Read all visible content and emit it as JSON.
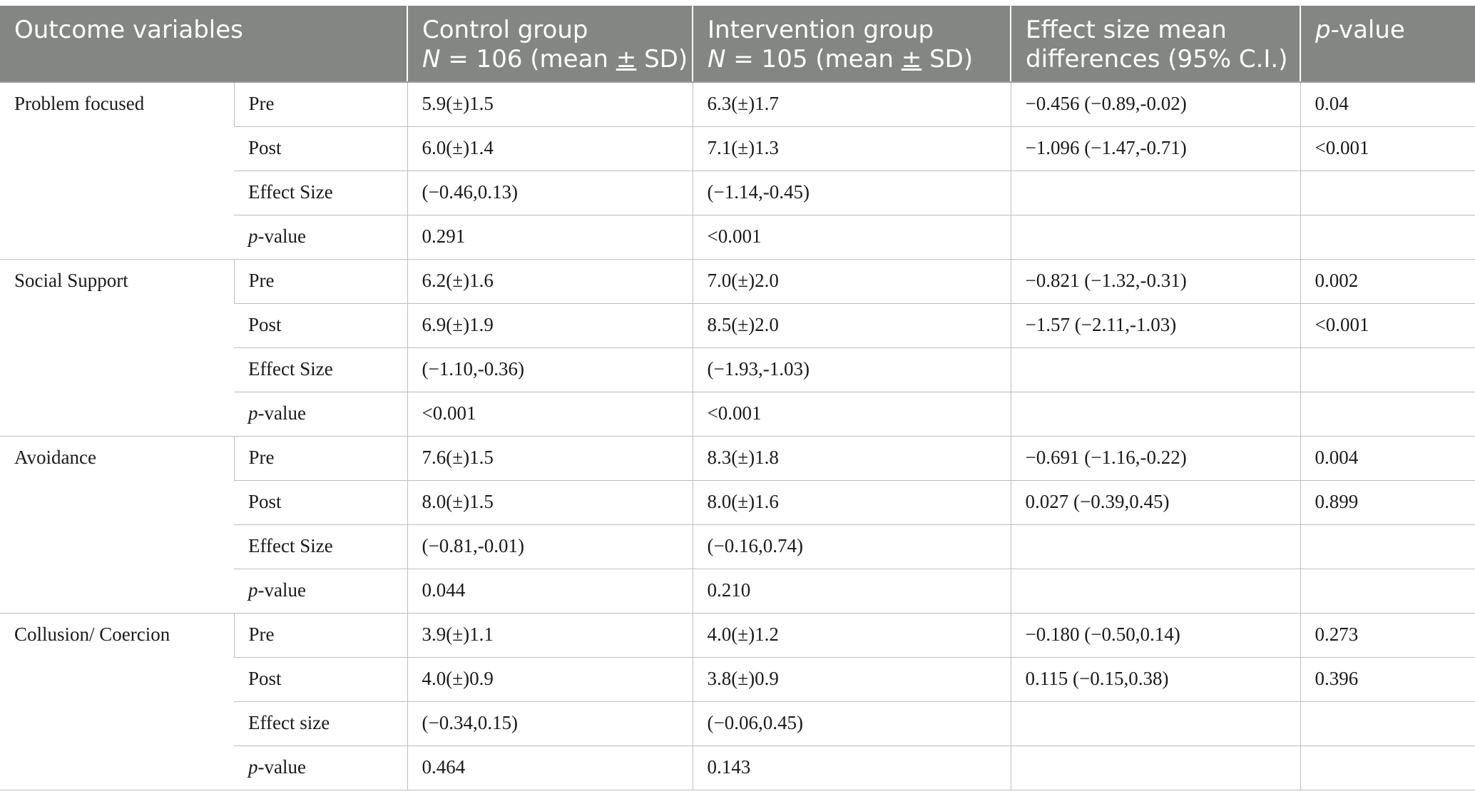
{
  "header": {
    "outcome_variables": "Outcome variables",
    "control_line1": "Control group",
    "control_n_symbol": "N",
    "control_n_rest": " = 106 (mean ",
    "control_pm": "±",
    "control_sd": " SD)",
    "intervention_line1": "Intervention group",
    "intervention_n_symbol": "N",
    "intervention_n_rest": " = 105 (mean ",
    "intervention_pm": "±",
    "intervention_sd": " SD)",
    "effect_line1": "Effect size mean",
    "effect_line2": "differences (95% C.I.)",
    "pvalue_p": "p",
    "pvalue_rest": "-value"
  },
  "groups": [
    {
      "name": "Problem focused",
      "rows": [
        {
          "measure": "Pre",
          "control": "5.9(±)1.5",
          "intervention": "6.3(±)1.7",
          "effect": "−0.456 (−0.89,-0.02)",
          "p": "0.04"
        },
        {
          "measure": "Post",
          "control": "6.0(±)1.4",
          "intervention": "7.1(±)1.3",
          "effect": "−1.096 (−1.47,-0.71)",
          "p": "<0.001"
        },
        {
          "measure": "Effect Size",
          "control": "(−0.46,0.13)",
          "intervention": "(−1.14,-0.45)",
          "effect": "",
          "p": ""
        },
        {
          "measure_p": "p",
          "measure_rest": "-value",
          "control": "0.291",
          "intervention": "<0.001",
          "effect": "",
          "p": ""
        }
      ]
    },
    {
      "name": "Social Support",
      "rows": [
        {
          "measure": "Pre",
          "control": "6.2(±)1.6",
          "intervention": "7.0(±)2.0",
          "effect": "−0.821 (−1.32,-0.31)",
          "p": "0.002"
        },
        {
          "measure": "Post",
          "control": "6.9(±)1.9",
          "intervention": "8.5(±)2.0",
          "effect": "−1.57 (−2.11,-1.03)",
          "p": "<0.001"
        },
        {
          "measure": "Effect Size",
          "control": "(−1.10,-0.36)",
          "intervention": "(−1.93,-1.03)",
          "effect": "",
          "p": ""
        },
        {
          "measure_p": "p",
          "measure_rest": "-value",
          "control": "<0.001",
          "intervention": "<0.001",
          "effect": "",
          "p": ""
        }
      ]
    },
    {
      "name": "Avoidance",
      "rows": [
        {
          "measure": "Pre",
          "control": "7.6(±)1.5",
          "intervention": "8.3(±)1.8",
          "effect": "−0.691 (−1.16,-0.22)",
          "p": "0.004"
        },
        {
          "measure": "Post",
          "control": "8.0(±)1.5",
          "intervention": "8.0(±)1.6",
          "effect": "0.027 (−0.39,0.45)",
          "p": "0.899"
        },
        {
          "measure": "Effect Size",
          "control": "(−0.81,-0.01)",
          "intervention": "(−0.16,0.74)",
          "effect": "",
          "p": ""
        },
        {
          "measure_p": "p",
          "measure_rest": "-value",
          "control": "0.044",
          "intervention": "0.210",
          "effect": "",
          "p": ""
        }
      ]
    },
    {
      "name": "Collusion/ Coercion",
      "rows": [
        {
          "measure": "Pre",
          "control": "3.9(±)1.1",
          "intervention": "4.0(±)1.2",
          "effect": "−0.180 (−0.50,0.14)",
          "p": "0.273"
        },
        {
          "measure": "Post",
          "control": "4.0(±)0.9",
          "intervention": "3.8(±)0.9",
          "effect": "0.115 (−0.15,0.38)",
          "p": "0.396"
        },
        {
          "measure": "Effect size",
          "control": "(−0.34,0.15)",
          "intervention": "(−0.06,0.45)",
          "effect": "",
          "p": ""
        },
        {
          "measure_p": "p",
          "measure_rest": "-value",
          "control": "0.464",
          "intervention": "0.143",
          "effect": "",
          "p": ""
        }
      ]
    }
  ]
}
